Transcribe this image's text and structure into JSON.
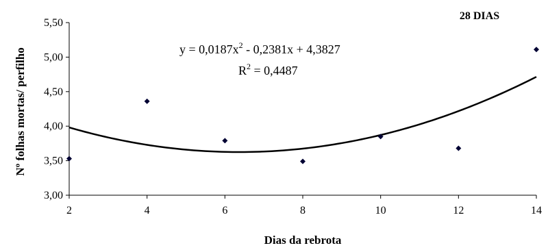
{
  "chart_data": {
    "type": "scatter",
    "panel_label": "28 DIAS",
    "xlabel": "Dias da rebrota",
    "ylabel": "Nº folhas mortas/ perfilho",
    "xlim": [
      2,
      14
    ],
    "ylim": [
      3.0,
      5.5
    ],
    "x_ticks": [
      "2",
      "4",
      "6",
      "8",
      "10",
      "12",
      "14"
    ],
    "y_ticks": [
      "3,00",
      "3,50",
      "4,00",
      "4,50",
      "5,00",
      "5,50"
    ],
    "x_tick_values": [
      2,
      4,
      6,
      8,
      10,
      12,
      14
    ],
    "y_tick_values": [
      3.0,
      3.5,
      4.0,
      4.5,
      5.0,
      5.5
    ],
    "points": [
      {
        "x": 2,
        "y": 3.53
      },
      {
        "x": 4,
        "y": 4.36
      },
      {
        "x": 6,
        "y": 3.79
      },
      {
        "x": 8,
        "y": 3.49
      },
      {
        "x": 10,
        "y": 3.85
      },
      {
        "x": 12,
        "y": 3.68
      },
      {
        "x": 14,
        "y": 5.11
      }
    ],
    "trendline": {
      "type": "polynomial",
      "coefficients": {
        "a": 0.0187,
        "b": -0.2381,
        "c": 4.3827
      }
    },
    "equation": {
      "line1_main": "y = 0,0187x",
      "line1_sup": "2",
      "line1_rest": " - 0,2381x + 4,3827",
      "line2_main": "R",
      "line2_sup": "2",
      "line2_rest": " = 0,4487"
    },
    "colors": {
      "marker": "#000033",
      "trendline": "#000000",
      "axis": "#000000"
    },
    "grid": false,
    "legend": "none"
  }
}
